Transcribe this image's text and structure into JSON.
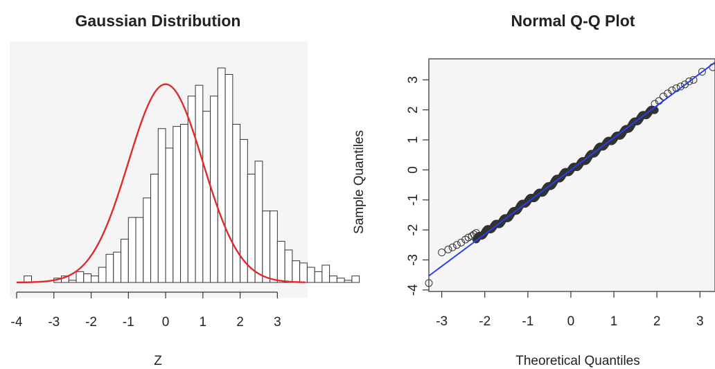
{
  "chart_data": [
    {
      "type": "bar",
      "title": "Gaussian Distribution",
      "xlabel": "Z",
      "ylabel": "",
      "xlim": [
        -4,
        3.7
      ],
      "ylim": [
        0,
        1
      ],
      "x_ticks": [
        -4,
        -3,
        -2,
        -1,
        0,
        1,
        2,
        3
      ],
      "y_axis_shown": false,
      "grid": false,
      "bin_width": 0.2,
      "bin_start": -3.8,
      "bin_heights_relative": [
        0.03,
        0.0,
        0.0,
        0.0,
        0.02,
        0.03,
        0.01,
        0.05,
        0.04,
        0.03,
        0.07,
        0.13,
        0.14,
        0.2,
        0.3,
        0.3,
        0.39,
        0.5,
        0.71,
        0.62,
        0.72,
        0.73,
        0.86,
        0.91,
        0.79,
        0.86,
        0.99,
        0.96,
        0.73,
        0.66,
        0.5,
        0.56,
        0.33,
        0.33,
        0.19,
        0.15,
        0.1,
        0.09,
        0.07,
        0.05,
        0.08,
        0.03,
        0.02,
        0.01,
        0.03
      ],
      "curve": {
        "name": "normal density",
        "mean": 0,
        "sd": 1,
        "peak_relative": 0.915,
        "color": "#e02a2a"
      },
      "bar_fill": "#ffffff",
      "bar_stroke": "#333333",
      "background": "#f5f5f5"
    },
    {
      "type": "scatter",
      "title": "Normal Q-Q Plot",
      "xlabel": "Theoretical Quantiles",
      "ylabel": "Sample Quantiles",
      "xlim": [
        -3.3,
        3.35
      ],
      "ylim": [
        -4.05,
        3.7
      ],
      "x_ticks": [
        -3,
        -2,
        -1,
        0,
        1,
        2,
        3
      ],
      "y_ticks": [
        -4,
        -3,
        -2,
        -1,
        0,
        1,
        2,
        3
      ],
      "grid": false,
      "reference_line": {
        "intercept": 0.0,
        "slope": 1.07,
        "color": "#2b3ee8"
      },
      "outlier_points": [
        [
          -3.3,
          -3.77
        ],
        [
          -3.0,
          -2.75
        ],
        [
          -2.85,
          -2.65
        ],
        [
          -2.75,
          -2.58
        ],
        [
          -2.65,
          -2.5
        ],
        [
          -2.55,
          -2.42
        ],
        [
          -2.45,
          -2.32
        ],
        [
          -2.38,
          -2.25
        ],
        [
          -2.3,
          -2.2
        ],
        [
          -2.25,
          -2.15
        ],
        [
          -2.2,
          -2.1
        ],
        [
          1.95,
          2.2
        ],
        [
          2.05,
          2.3
        ],
        [
          2.15,
          2.45
        ],
        [
          2.25,
          2.55
        ],
        [
          2.35,
          2.65
        ],
        [
          2.45,
          2.72
        ],
        [
          2.55,
          2.78
        ],
        [
          2.65,
          2.85
        ],
        [
          2.75,
          2.95
        ],
        [
          2.85,
          3.0
        ],
        [
          3.05,
          3.27
        ],
        [
          3.3,
          3.42
        ]
      ],
      "dense_range": [
        -2.2,
        1.95
      ],
      "point_stroke": "#333333",
      "background": "#f5f5f5"
    }
  ]
}
